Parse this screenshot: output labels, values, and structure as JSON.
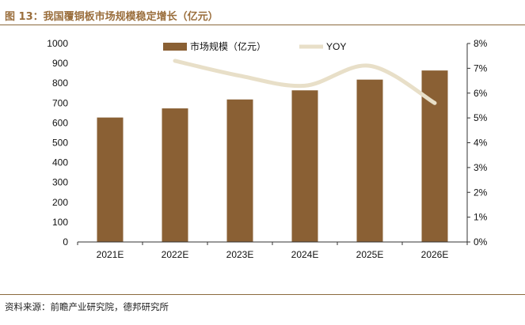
{
  "figure": {
    "title": "图 13：我国覆铜板市场规模稳定增长（亿元）",
    "source": "资料来源：前瞻产业研究院，德邦研究所"
  },
  "colors": {
    "bar": "#8a6034",
    "line": "#e8dfc8",
    "accent": "#9a6e3c"
  },
  "chart_data": {
    "type": "bar",
    "categories": [
      "2021E",
      "2022E",
      "2023E",
      "2024E",
      "2025E",
      "2026E"
    ],
    "series": [
      {
        "name": "市场规模（亿元）",
        "type": "bar",
        "axis": "left",
        "values": [
          627,
          673,
          718,
          764,
          818,
          864
        ]
      },
      {
        "name": "YOY",
        "type": "line",
        "axis": "right",
        "values": [
          null,
          7.3,
          6.7,
          6.3,
          7.1,
          5.6
        ]
      }
    ],
    "y_left": {
      "min": 0,
      "max": 1000,
      "step": 100,
      "ticks": [
        "0",
        "100",
        "200",
        "300",
        "400",
        "500",
        "600",
        "700",
        "800",
        "900",
        "1000"
      ]
    },
    "y_right": {
      "min": 0,
      "max": 8,
      "step": 1,
      "ticks": [
        "0%",
        "1%",
        "2%",
        "3%",
        "4%",
        "5%",
        "6%",
        "7%",
        "8%"
      ]
    },
    "legend": "top-center",
    "grid": false
  }
}
